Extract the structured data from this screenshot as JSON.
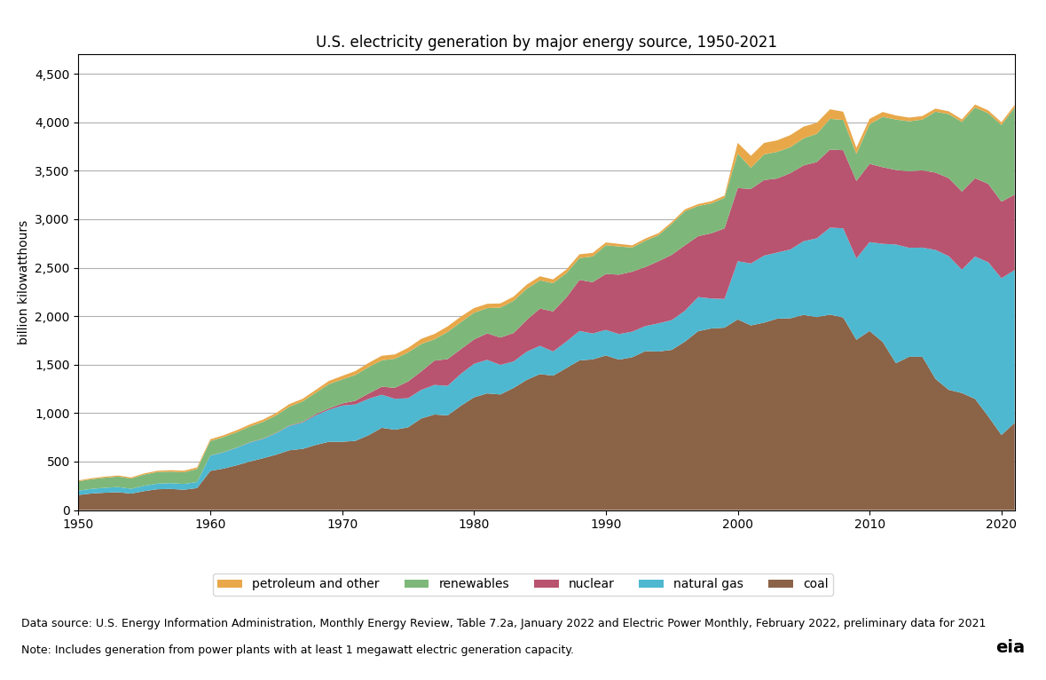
{
  "chart_data": {
    "type": "area",
    "stacked": true,
    "title": "U.S. electricity generation by major energy source, 1950-2021",
    "ylabel": "billion kilowatthours",
    "annotations": [
      "Data source: U.S. Energy Information Administration, Monthly Energy Review, Table 7.2a, January 2022 and Electric Power Monthly, February 2022, preliminary data for 2021",
      "Note: Includes generation from power plants with at least 1 megawatt electric generation capacity.",
      "eia"
    ],
    "x": [
      1950,
      1951,
      1952,
      1953,
      1954,
      1955,
      1956,
      1957,
      1958,
      1959,
      1960,
      1961,
      1962,
      1963,
      1964,
      1965,
      1966,
      1967,
      1968,
      1969,
      1970,
      1971,
      1972,
      1973,
      1974,
      1975,
      1976,
      1977,
      1978,
      1979,
      1980,
      1981,
      1982,
      1983,
      1984,
      1985,
      1986,
      1987,
      1988,
      1989,
      1990,
      1991,
      1992,
      1993,
      1994,
      1995,
      1996,
      1997,
      1998,
      1999,
      2000,
      2001,
      2002,
      2003,
      2004,
      2005,
      2006,
      2007,
      2008,
      2009,
      2010,
      2011,
      2012,
      2013,
      2014,
      2015,
      2016,
      2017,
      2018,
      2019,
      2020,
      2021
    ],
    "series": [
      {
        "name": "coal",
        "color": "#8B6347",
        "values": [
          155,
          170,
          178,
          183,
          169,
          195,
          214,
          217,
          209,
          226,
          403,
          427,
          461,
          500,
          534,
          571,
          616,
          630,
          671,
          704,
          704,
          713,
          771,
          848,
          828,
          853,
          944,
          985,
          976,
          1075,
          1162,
          1203,
          1192,
          1259,
          1342,
          1402,
          1386,
          1464,
          1543,
          1554,
          1594,
          1551,
          1576,
          1639,
          1635,
          1652,
          1737,
          1845,
          1873,
          1881,
          1966,
          1904,
          1933,
          1974,
          1978,
          2013,
          1990,
          2016,
          1986,
          1756,
          1847,
          1733,
          1514,
          1581,
          1581,
          1352,
          1240,
          1207,
          1146,
          966,
          774,
          899
        ]
      },
      {
        "name": "natural gas",
        "color": "#4EB8D0",
        "values": [
          45,
          48,
          51,
          54,
          50,
          55,
          58,
          60,
          60,
          63,
          158,
          168,
          181,
          196,
          199,
          222,
          251,
          272,
          306,
          330,
          373,
          376,
          376,
          341,
          319,
          300,
          295,
          305,
          305,
          329,
          346,
          346,
          305,
          273,
          291,
          292,
          249,
          273,
          304,
          267,
          264,
          264,
          264,
          258,
          291,
          307,
          319,
          352,
          309,
          296,
          601,
          639,
          691,
          682,
          710,
          760,
          813,
          897,
          920,
          839,
          917,
          1013,
          1225,
          1124,
          1126,
          1331,
          1379,
          1273,
          1469,
          1590,
          1617,
          1576
        ]
      },
      {
        "name": "nuclear",
        "color": "#B85470",
        "values": [
          0,
          0,
          0,
          0,
          0,
          0,
          0,
          0,
          0,
          0,
          1,
          2,
          2,
          3,
          4,
          4,
          5,
          7,
          13,
          14,
          22,
          38,
          54,
          83,
          114,
          173,
          191,
          251,
          276,
          255,
          251,
          273,
          282,
          294,
          328,
          384,
          414,
          455,
          527,
          529,
          577,
          613,
          619,
          610,
          641,
          674,
          675,
          628,
          673,
          728,
          754,
          769,
          780,
          764,
          788,
          782,
          787,
          806,
          806,
          799,
          807,
          790,
          769,
          789,
          797,
          798,
          805,
          805,
          808,
          809,
          790,
          778
        ]
      },
      {
        "name": "renewables",
        "color": "#7DB87A",
        "values": [
          96,
          100,
          104,
          108,
          106,
          116,
          120,
          119,
          120,
          134,
          150,
          155,
          158,
          162,
          172,
          179,
          194,
          211,
          219,
          251,
          248,
          266,
          273,
          272,
          300,
          300,
          283,
          220,
          280,
          279,
          276,
          261,
          309,
          332,
          321,
          291,
          291,
          250,
          226,
          265,
          297,
          290,
          249,
          271,
          268,
          319,
          352,
          311,
          308,
          316,
          356,
          218,
          264,
          275,
          268,
          280,
          291,
          316,
          312,
          279,
          408,
          520,
          520,
          516,
          524,
          628,
          660,
          718,
          730,
          728,
          791,
          896
        ]
      },
      {
        "name": "petroleum and other",
        "color": "#E8A84A",
        "values": [
          9,
          10,
          11,
          11,
          11,
          12,
          13,
          15,
          16,
          17,
          18,
          19,
          21,
          22,
          24,
          25,
          27,
          27,
          30,
          33,
          36,
          40,
          43,
          47,
          44,
          47,
          53,
          55,
          57,
          57,
          48,
          44,
          43,
          43,
          43,
          42,
          39,
          38,
          38,
          37,
          28,
          27,
          22,
          23,
          21,
          20,
          19,
          20,
          22,
          22,
          111,
          124,
          119,
          119,
          124,
          120,
          113,
          99,
          85,
          64,
          56,
          50,
          42,
          38,
          36,
          32,
          29,
          27,
          30,
          29,
          28,
          28
        ]
      }
    ],
    "xlim": [
      1950,
      2021
    ],
    "xticks": [
      1950,
      1960,
      1970,
      1980,
      1990,
      2000,
      2010,
      2020
    ],
    "ylim": [
      0,
      4700
    ],
    "yticks": [
      0,
      500,
      {
        "value": 1000,
        "label": "1,000"
      },
      {
        "value": 1500,
        "label": "1,500"
      },
      {
        "value": 2000,
        "label": "2,000"
      },
      {
        "value": 2500,
        "label": "2,500"
      },
      {
        "value": 3000,
        "label": "3,000"
      },
      {
        "value": 3500,
        "label": "3,500"
      },
      {
        "value": 4000,
        "label": "4,000"
      },
      {
        "value": 4500,
        "label": "4,500"
      }
    ],
    "grid": "y",
    "legend": "lower center"
  }
}
